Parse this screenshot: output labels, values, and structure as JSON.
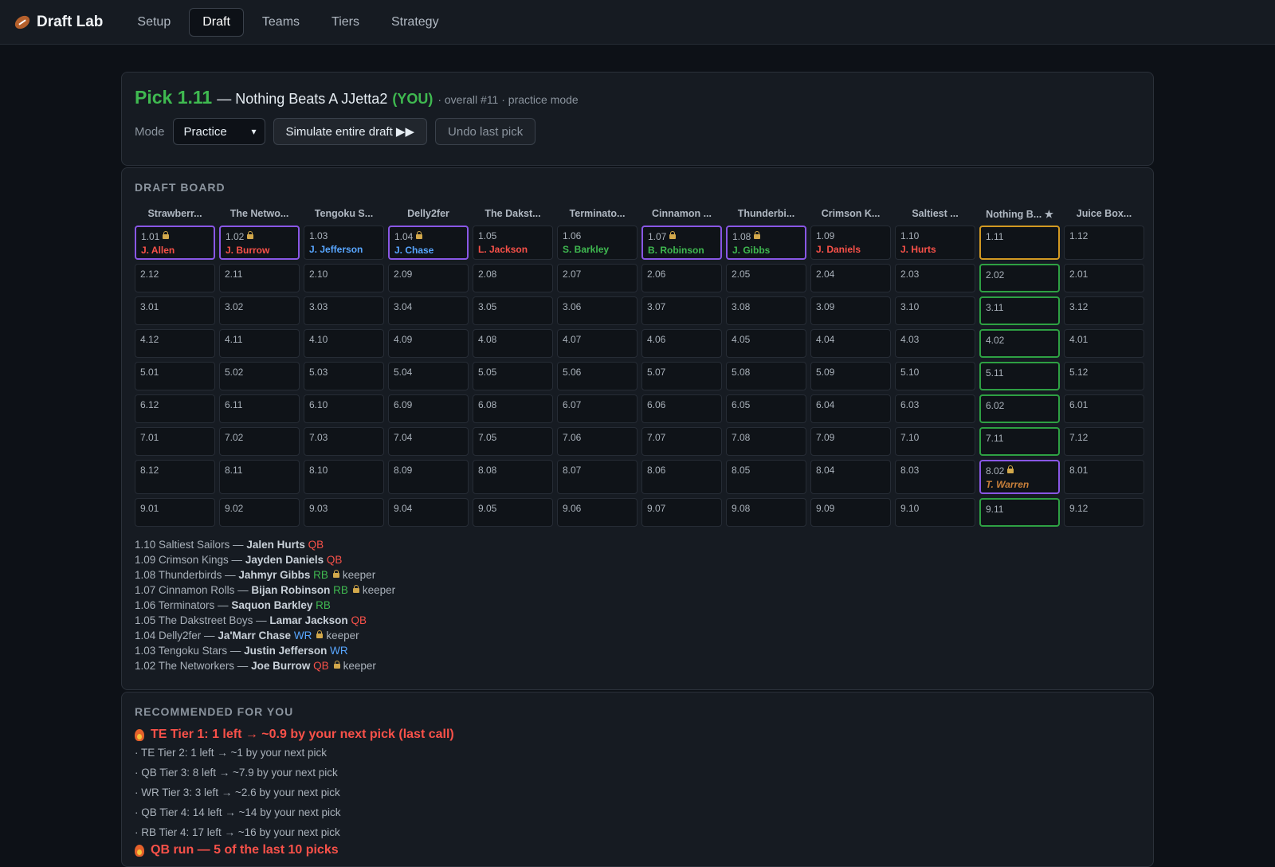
{
  "app": {
    "title": "Draft Lab"
  },
  "nav": [
    {
      "label": "Setup",
      "active": false
    },
    {
      "label": "Draft",
      "active": true
    },
    {
      "label": "Teams",
      "active": false
    },
    {
      "label": "Tiers",
      "active": false
    },
    {
      "label": "Strategy",
      "active": false
    }
  ],
  "header": {
    "pick": "Pick 1.11",
    "team": "— Nothing Beats A JJetta2",
    "you": "(YOU)",
    "meta": "· overall #11 · practice mode",
    "mode_label": "Mode",
    "mode_value": "Practice",
    "simulate_label": "Simulate entire draft ▶▶",
    "undo_label": "Undo last pick"
  },
  "board": {
    "title": "DRAFT BOARD",
    "teams": [
      "Strawberr...",
      "The Netwo...",
      "Tengoku S...",
      "Delly2fer",
      "The Dakst...",
      "Terminato...",
      "Cinnamon ...",
      "Thunderbi...",
      "Crimson K...",
      "Saltiest ...",
      "Nothing B... ★",
      "Juice Box..."
    ],
    "rows": [
      [
        {
          "p": "1.01",
          "player": "J. Allen",
          "color": "#f85149",
          "keeper": true,
          "s": "keeper"
        },
        {
          "p": "1.02",
          "player": "J. Burrow",
          "color": "#f85149",
          "keeper": true,
          "s": "keeper"
        },
        {
          "p": "1.03",
          "player": "J. Jefferson",
          "color": "#58a6ff",
          "keeper": false,
          "s": ""
        },
        {
          "p": "1.04",
          "player": "J. Chase",
          "color": "#58a6ff",
          "keeper": true,
          "s": "keeper"
        },
        {
          "p": "1.05",
          "player": "L. Jackson",
          "color": "#f85149",
          "keeper": false,
          "s": ""
        },
        {
          "p": "1.06",
          "player": "S. Barkley",
          "color": "#3fb950",
          "keeper": false,
          "s": ""
        },
        {
          "p": "1.07",
          "player": "B. Robinson",
          "color": "#3fb950",
          "keeper": true,
          "s": "keeper"
        },
        {
          "p": "1.08",
          "player": "J. Gibbs",
          "color": "#3fb950",
          "keeper": true,
          "s": "keeper"
        },
        {
          "p": "1.09",
          "player": "J. Daniels",
          "color": "#f85149",
          "keeper": false,
          "s": ""
        },
        {
          "p": "1.10",
          "player": "J. Hurts",
          "color": "#f85149",
          "keeper": false,
          "s": ""
        },
        {
          "p": "1.11",
          "player": "",
          "color": "",
          "keeper": false,
          "s": "current"
        },
        {
          "p": "1.12",
          "player": "",
          "color": "",
          "keeper": false,
          "s": ""
        }
      ],
      [
        {
          "p": "2.12",
          "s": ""
        },
        {
          "p": "2.11",
          "s": ""
        },
        {
          "p": "2.10",
          "s": ""
        },
        {
          "p": "2.09",
          "s": ""
        },
        {
          "p": "2.08",
          "s": ""
        },
        {
          "p": "2.07",
          "s": ""
        },
        {
          "p": "2.06",
          "s": ""
        },
        {
          "p": "2.05",
          "s": ""
        },
        {
          "p": "2.04",
          "s": ""
        },
        {
          "p": "2.03",
          "s": ""
        },
        {
          "p": "2.02",
          "s": "you"
        },
        {
          "p": "2.01",
          "s": ""
        }
      ],
      [
        {
          "p": "3.01",
          "s": ""
        },
        {
          "p": "3.02",
          "s": ""
        },
        {
          "p": "3.03",
          "s": ""
        },
        {
          "p": "3.04",
          "s": ""
        },
        {
          "p": "3.05",
          "s": ""
        },
        {
          "p": "3.06",
          "s": ""
        },
        {
          "p": "3.07",
          "s": ""
        },
        {
          "p": "3.08",
          "s": ""
        },
        {
          "p": "3.09",
          "s": ""
        },
        {
          "p": "3.10",
          "s": ""
        },
        {
          "p": "3.11",
          "s": "you"
        },
        {
          "p": "3.12",
          "s": ""
        }
      ],
      [
        {
          "p": "4.12",
          "s": ""
        },
        {
          "p": "4.11",
          "s": ""
        },
        {
          "p": "4.10",
          "s": ""
        },
        {
          "p": "4.09",
          "s": ""
        },
        {
          "p": "4.08",
          "s": ""
        },
        {
          "p": "4.07",
          "s": ""
        },
        {
          "p": "4.06",
          "s": ""
        },
        {
          "p": "4.05",
          "s": ""
        },
        {
          "p": "4.04",
          "s": ""
        },
        {
          "p": "4.03",
          "s": ""
        },
        {
          "p": "4.02",
          "s": "you"
        },
        {
          "p": "4.01",
          "s": ""
        }
      ],
      [
        {
          "p": "5.01",
          "s": ""
        },
        {
          "p": "5.02",
          "s": ""
        },
        {
          "p": "5.03",
          "s": ""
        },
        {
          "p": "5.04",
          "s": ""
        },
        {
          "p": "5.05",
          "s": ""
        },
        {
          "p": "5.06",
          "s": ""
        },
        {
          "p": "5.07",
          "s": ""
        },
        {
          "p": "5.08",
          "s": ""
        },
        {
          "p": "5.09",
          "s": ""
        },
        {
          "p": "5.10",
          "s": ""
        },
        {
          "p": "5.11",
          "s": "you"
        },
        {
          "p": "5.12",
          "s": ""
        }
      ],
      [
        {
          "p": "6.12",
          "s": ""
        },
        {
          "p": "6.11",
          "s": ""
        },
        {
          "p": "6.10",
          "s": ""
        },
        {
          "p": "6.09",
          "s": ""
        },
        {
          "p": "6.08",
          "s": ""
        },
        {
          "p": "6.07",
          "s": ""
        },
        {
          "p": "6.06",
          "s": ""
        },
        {
          "p": "6.05",
          "s": ""
        },
        {
          "p": "6.04",
          "s": ""
        },
        {
          "p": "6.03",
          "s": ""
        },
        {
          "p": "6.02",
          "s": "you"
        },
        {
          "p": "6.01",
          "s": ""
        }
      ],
      [
        {
          "p": "7.01",
          "s": ""
        },
        {
          "p": "7.02",
          "s": ""
        },
        {
          "p": "7.03",
          "s": ""
        },
        {
          "p": "7.04",
          "s": ""
        },
        {
          "p": "7.05",
          "s": ""
        },
        {
          "p": "7.06",
          "s": ""
        },
        {
          "p": "7.07",
          "s": ""
        },
        {
          "p": "7.08",
          "s": ""
        },
        {
          "p": "7.09",
          "s": ""
        },
        {
          "p": "7.10",
          "s": ""
        },
        {
          "p": "7.11",
          "s": "you"
        },
        {
          "p": "7.12",
          "s": ""
        }
      ],
      [
        {
          "p": "8.12",
          "s": ""
        },
        {
          "p": "8.11",
          "s": ""
        },
        {
          "p": "8.10",
          "s": ""
        },
        {
          "p": "8.09",
          "s": ""
        },
        {
          "p": "8.08",
          "s": ""
        },
        {
          "p": "8.07",
          "s": ""
        },
        {
          "p": "8.06",
          "s": ""
        },
        {
          "p": "8.05",
          "s": ""
        },
        {
          "p": "8.04",
          "s": ""
        },
        {
          "p": "8.03",
          "s": ""
        },
        {
          "p": "8.02",
          "player": "T. Warren",
          "color": "#c9803a",
          "keeper": true,
          "italic": true,
          "s": "keeper"
        },
        {
          "p": "8.01",
          "s": ""
        }
      ],
      [
        {
          "p": "9.01",
          "s": ""
        },
        {
          "p": "9.02",
          "s": ""
        },
        {
          "p": "9.03",
          "s": ""
        },
        {
          "p": "9.04",
          "s": ""
        },
        {
          "p": "9.05",
          "s": ""
        },
        {
          "p": "9.06",
          "s": ""
        },
        {
          "p": "9.07",
          "s": ""
        },
        {
          "p": "9.08",
          "s": ""
        },
        {
          "p": "9.09",
          "s": ""
        },
        {
          "p": "9.10",
          "s": ""
        },
        {
          "p": "9.11",
          "s": "you"
        },
        {
          "p": "9.12",
          "s": ""
        }
      ]
    ]
  },
  "log": [
    {
      "pick": "1.10 Saltiest Sailors —",
      "player": "Jalen Hurts",
      "pos": "QB",
      "color": "#f85149",
      "keeper": false
    },
    {
      "pick": "1.09 Crimson Kings —",
      "player": "Jayden Daniels",
      "pos": "QB",
      "color": "#f85149",
      "keeper": false
    },
    {
      "pick": "1.08 Thunderbirds —",
      "player": "Jahmyr Gibbs",
      "pos": "RB",
      "color": "#3fb950",
      "keeper": true
    },
    {
      "pick": "1.07 Cinnamon Rolls —",
      "player": "Bijan Robinson",
      "pos": "RB",
      "color": "#3fb950",
      "keeper": true
    },
    {
      "pick": "1.06 Terminators —",
      "player": "Saquon Barkley",
      "pos": "RB",
      "color": "#3fb950",
      "keeper": false
    },
    {
      "pick": "1.05 The Dakstreet Boys —",
      "player": "Lamar Jackson",
      "pos": "QB",
      "color": "#f85149",
      "keeper": false
    },
    {
      "pick": "1.04 Delly2fer —",
      "player": "Ja'Marr Chase",
      "pos": "WR",
      "color": "#58a6ff",
      "keeper": true
    },
    {
      "pick": "1.03 Tengoku Stars —",
      "player": "Justin Jefferson",
      "pos": "WR",
      "color": "#58a6ff",
      "keeper": false
    },
    {
      "pick": "1.02 The Networkers —",
      "player": "Joe Burrow",
      "pos": "QB",
      "color": "#f85149",
      "keeper": true
    }
  ],
  "keeper_label": "keeper",
  "recommended": {
    "title": "RECOMMENDED FOR YOU",
    "alert": "TE Tier 1: 1 left → ~0.9 by your next pick (last call)",
    "items": [
      "· TE Tier 2: 1 left → ~1 by your next pick",
      "· QB Tier 3: 8 left → ~7.9 by your next pick",
      "· WR Tier 3: 3 left → ~2.6 by your next pick",
      "· QB Tier 4: 14 left → ~14 by your next pick",
      "· RB Tier 4: 17 left → ~16 by your next pick"
    ],
    "run_alert": "QB run — 5 of the last 10 picks"
  }
}
